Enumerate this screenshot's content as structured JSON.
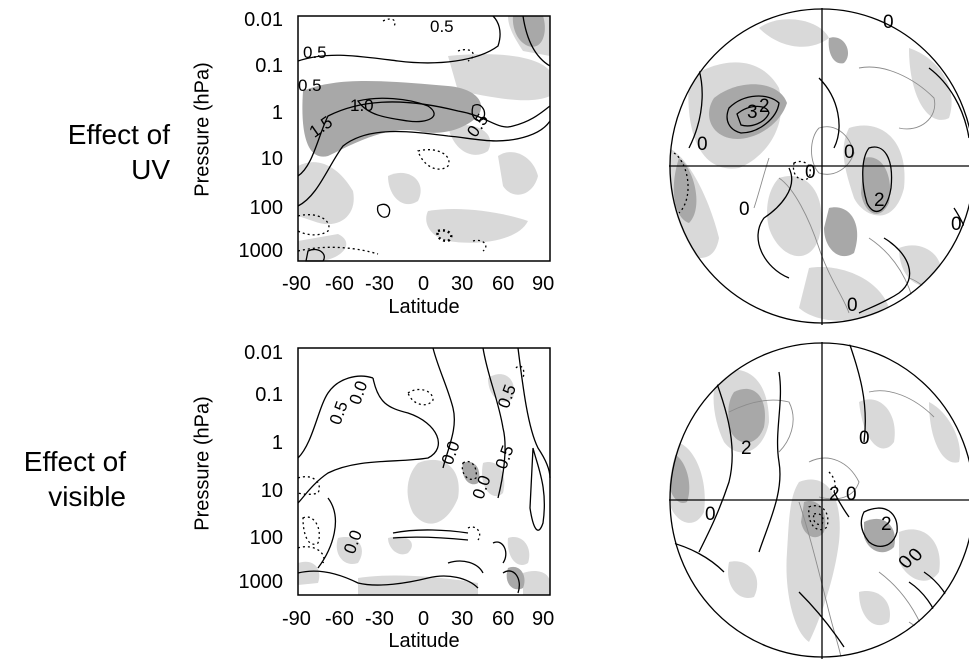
{
  "panels": [
    {
      "row_label": [
        "Effect of",
        "UV"
      ],
      "ylabel": "Pressure (hPa)",
      "xlabel": "Latitude",
      "yticks": [
        "0.01",
        "0.1",
        "1",
        "10",
        "100",
        "1000"
      ],
      "xticks": [
        "-90",
        "-60",
        "-30",
        "0",
        "30",
        "60",
        "90"
      ],
      "contour_labels": [
        "0.5",
        "0.5",
        "1.0",
        "1.5",
        "0.5",
        "0.5"
      ],
      "map_contour_labels": [
        "0",
        "3",
        "2",
        "0",
        "0",
        "0",
        "2",
        "0",
        "0",
        "0"
      ]
    },
    {
      "row_label": [
        "Effect of",
        "visible"
      ],
      "ylabel": "Pressure (hPa)",
      "xlabel": "Latitude",
      "yticks": [
        "0.01",
        "0.1",
        "1",
        "10",
        "100",
        "1000"
      ],
      "xticks": [
        "-90",
        "-60",
        "-30",
        "0",
        "30",
        "60",
        "90"
      ],
      "contour_labels": [
        "0.5",
        "0.0",
        "0.0",
        "0.0",
        "0.5",
        "0.5",
        "0.0"
      ],
      "map_contour_labels": [
        "0",
        "2",
        "0",
        "2",
        "0",
        "2",
        "0",
        "0"
      ]
    }
  ],
  "colors": {
    "shade_light": "#d9d9d9",
    "shade_dark": "#a8a8a8",
    "line": "#000000",
    "coast": "#8c8c8c"
  }
}
